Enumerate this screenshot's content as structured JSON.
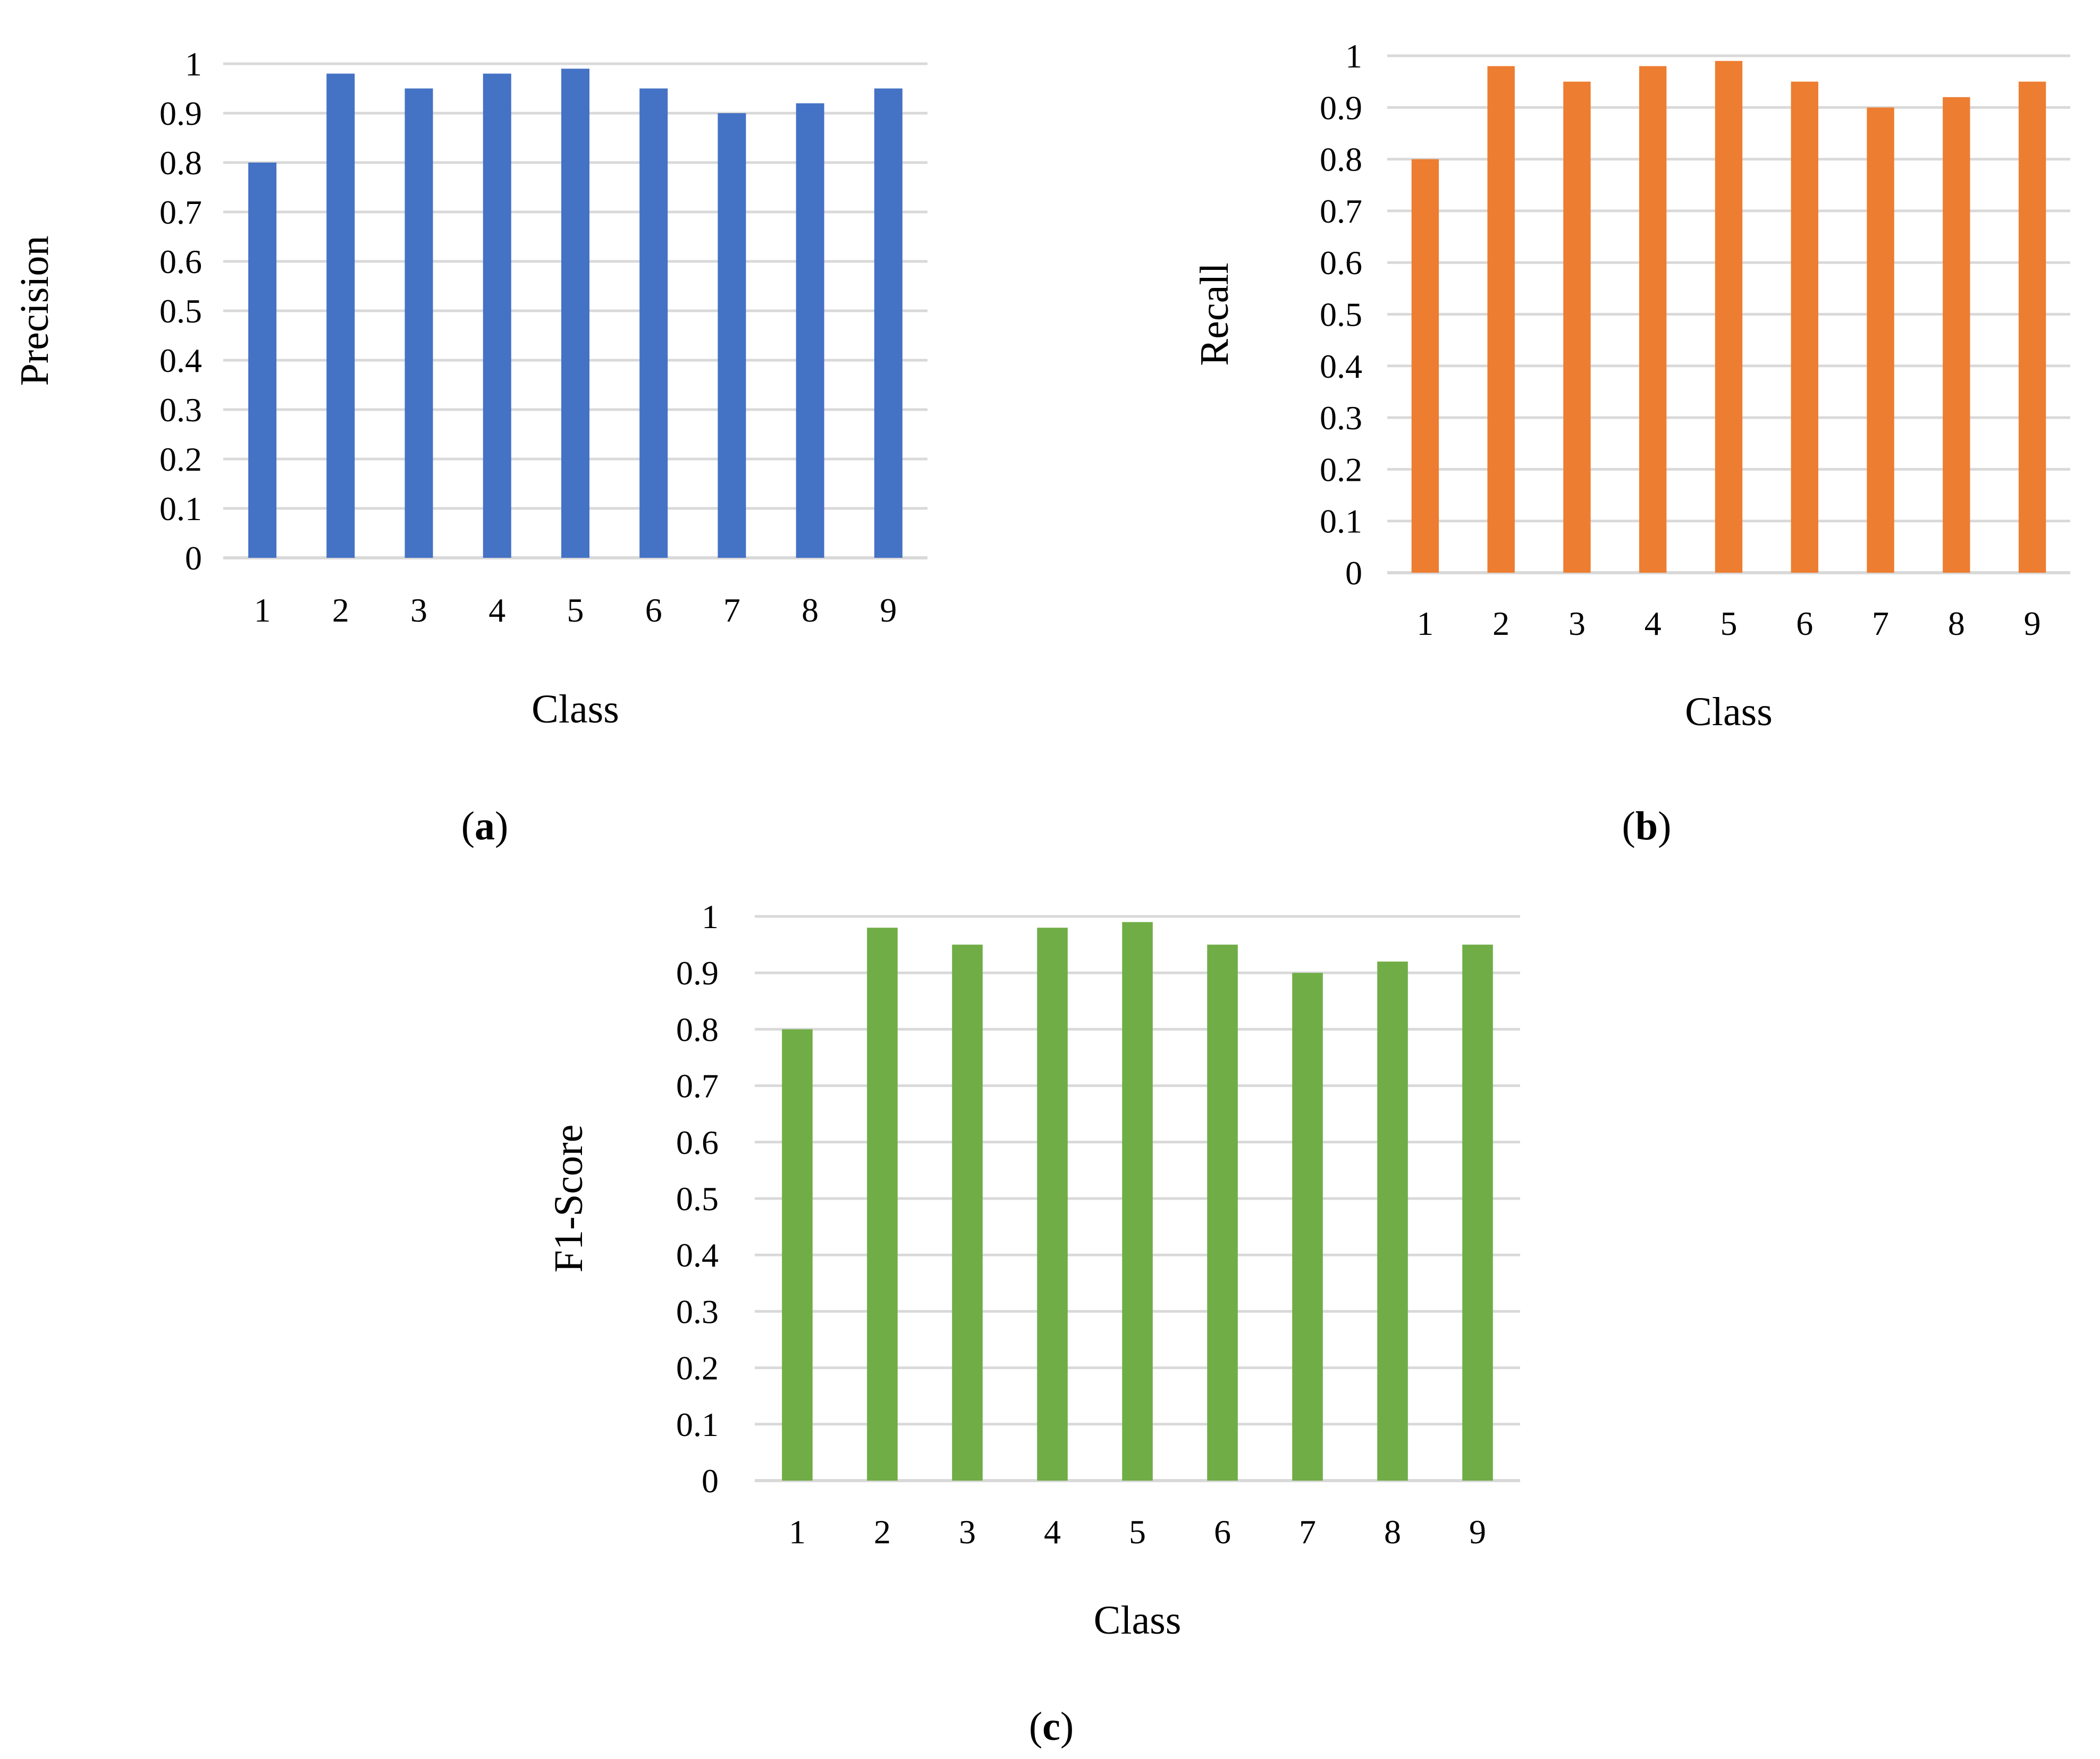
{
  "chart_data": [
    {
      "id": "a",
      "type": "bar",
      "categories": [
        "1",
        "2",
        "3",
        "4",
        "5",
        "6",
        "7",
        "8",
        "9"
      ],
      "values": [
        0.8,
        0.98,
        0.95,
        0.98,
        0.99,
        0.95,
        0.9,
        0.92,
        0.95
      ],
      "title": "",
      "xlabel": "Class",
      "ylabel": "Precision",
      "ylim": [
        0,
        1
      ],
      "yticks": [
        "0",
        "0.1",
        "0.2",
        "0.3",
        "0.4",
        "0.5",
        "0.6",
        "0.7",
        "0.8",
        "0.9",
        "1"
      ],
      "grid": true,
      "color": "#4472C4",
      "caption": {
        "open": "(",
        "letter": "a",
        "close": ")"
      }
    },
    {
      "id": "b",
      "type": "bar",
      "categories": [
        "1",
        "2",
        "3",
        "4",
        "5",
        "6",
        "7",
        "8",
        "9"
      ],
      "values": [
        0.8,
        0.98,
        0.95,
        0.98,
        0.99,
        0.95,
        0.9,
        0.92,
        0.95
      ],
      "title": "",
      "xlabel": "Class",
      "ylabel": "Recall",
      "ylim": [
        0,
        1
      ],
      "yticks": [
        "0",
        "0.1",
        "0.2",
        "0.3",
        "0.4",
        "0.5",
        "0.6",
        "0.7",
        "0.8",
        "0.9",
        "1"
      ],
      "grid": true,
      "color": "#ED7D31",
      "caption": {
        "open": "(",
        "letter": "b",
        "close": ")"
      }
    },
    {
      "id": "c",
      "type": "bar",
      "categories": [
        "1",
        "2",
        "3",
        "4",
        "5",
        "6",
        "7",
        "8",
        "9"
      ],
      "values": [
        0.8,
        0.98,
        0.95,
        0.98,
        0.99,
        0.95,
        0.9,
        0.92,
        0.95
      ],
      "title": "",
      "xlabel": "Class",
      "ylabel": "F1-Score",
      "ylim": [
        0,
        1
      ],
      "yticks": [
        "0",
        "0.1",
        "0.2",
        "0.3",
        "0.4",
        "0.5",
        "0.6",
        "0.7",
        "0.8",
        "0.9",
        "1"
      ],
      "grid": true,
      "color": "#70AD47",
      "caption": {
        "open": "(",
        "letter": "c",
        "close": ")"
      }
    }
  ],
  "colors": {
    "gridline": "#D9D9D9",
    "axis": "#D9D9D9"
  }
}
